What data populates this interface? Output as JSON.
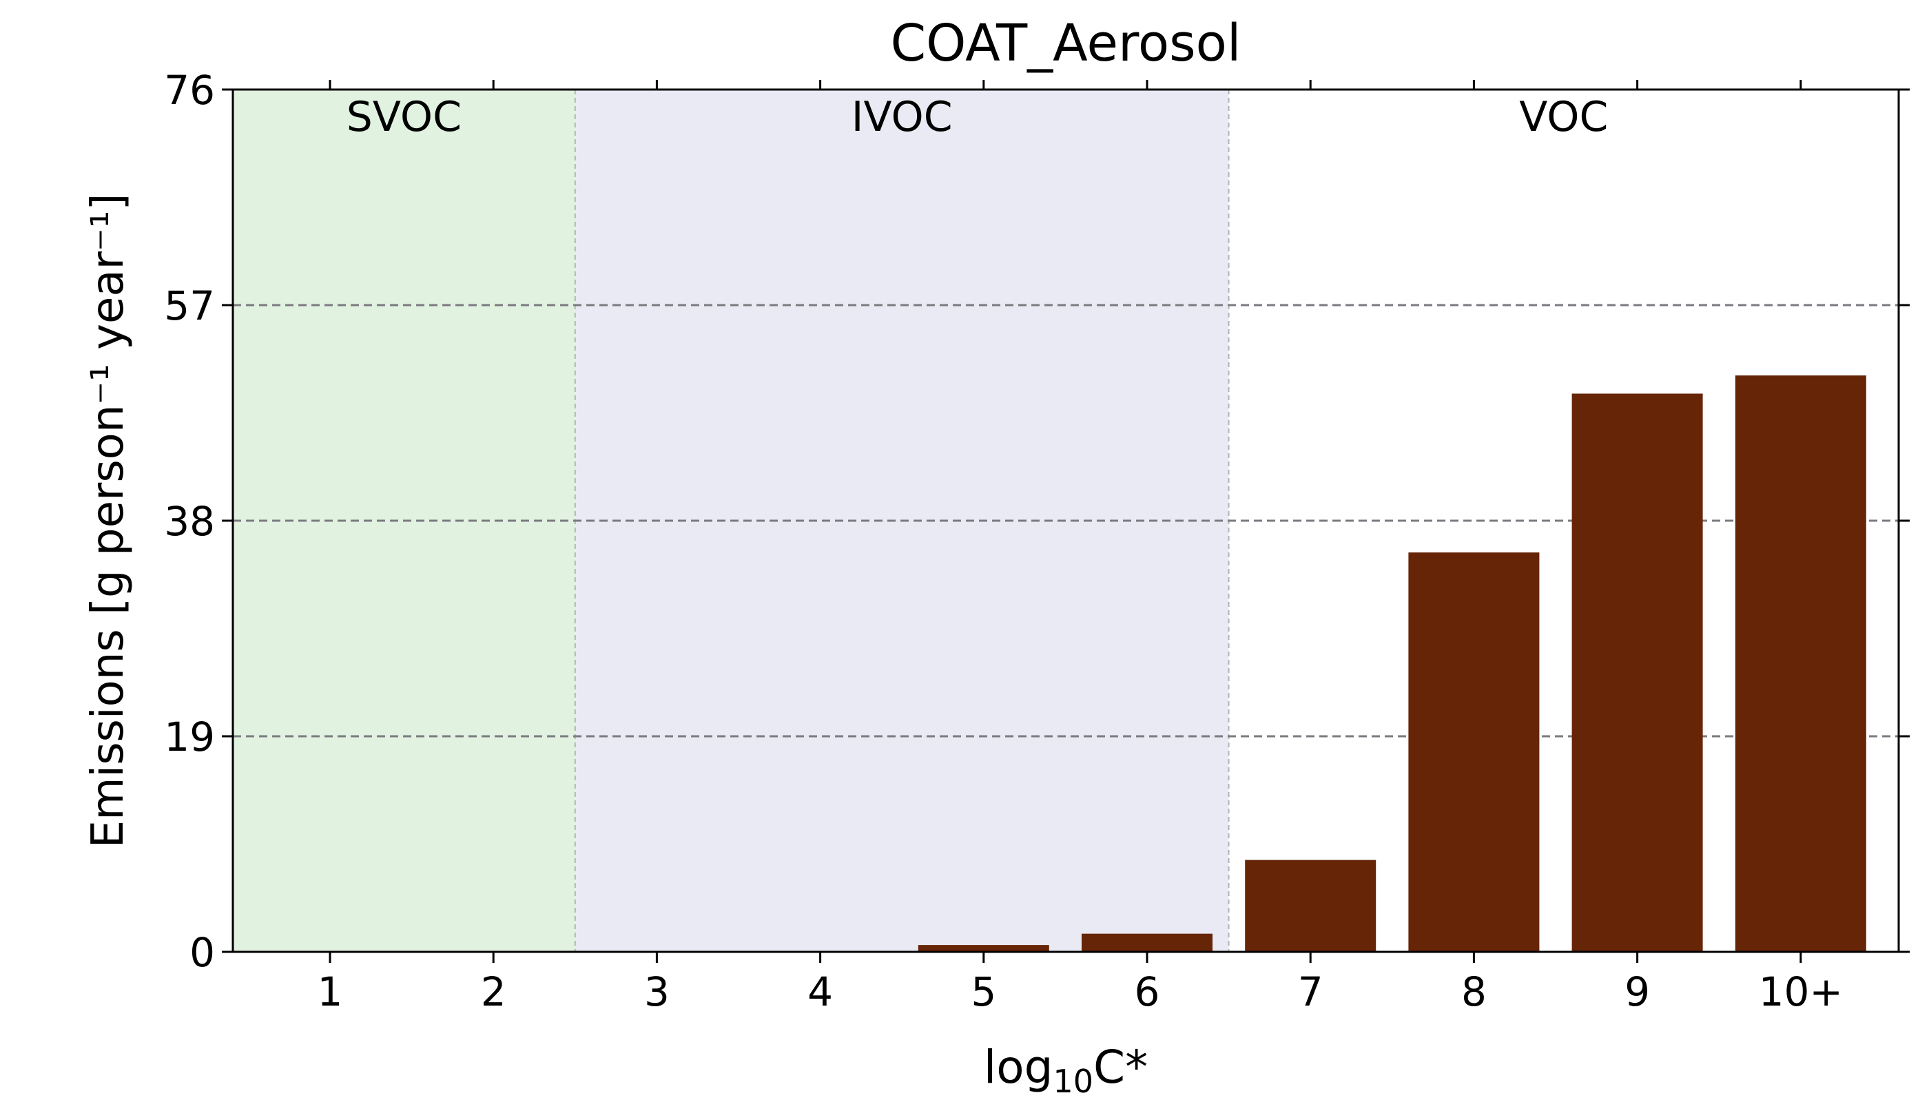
{
  "chart_data": {
    "type": "bar",
    "title": "COAT_Aerosol",
    "xlabel_base": "log",
    "xlabel_sub": "10",
    "xlabel_tail": "C*",
    "ylabel": "Emissions [g person⁻¹ year⁻¹]",
    "categories": [
      "1",
      "2",
      "3",
      "4",
      "5",
      "6",
      "7",
      "8",
      "9",
      "10+"
    ],
    "values": [
      0,
      0,
      0,
      0,
      0.6,
      1.6,
      8.1,
      35.2,
      49.2,
      50.8
    ],
    "ylim": [
      0,
      76
    ],
    "yticks": [
      "0",
      "19",
      "38",
      "57",
      "76"
    ],
    "grid": "horizontal dashed",
    "bar_color": "#662506",
    "regions": [
      {
        "label": "SVOC",
        "from_category": "1",
        "to_category": "2",
        "color": "#e1f2e0"
      },
      {
        "label": "IVOC",
        "from_category": "3",
        "to_category": "6",
        "color": "#eaeaf4"
      },
      {
        "label": "VOC",
        "from_category": "7",
        "to_category": "10+",
        "color": "#ffffff"
      }
    ]
  }
}
